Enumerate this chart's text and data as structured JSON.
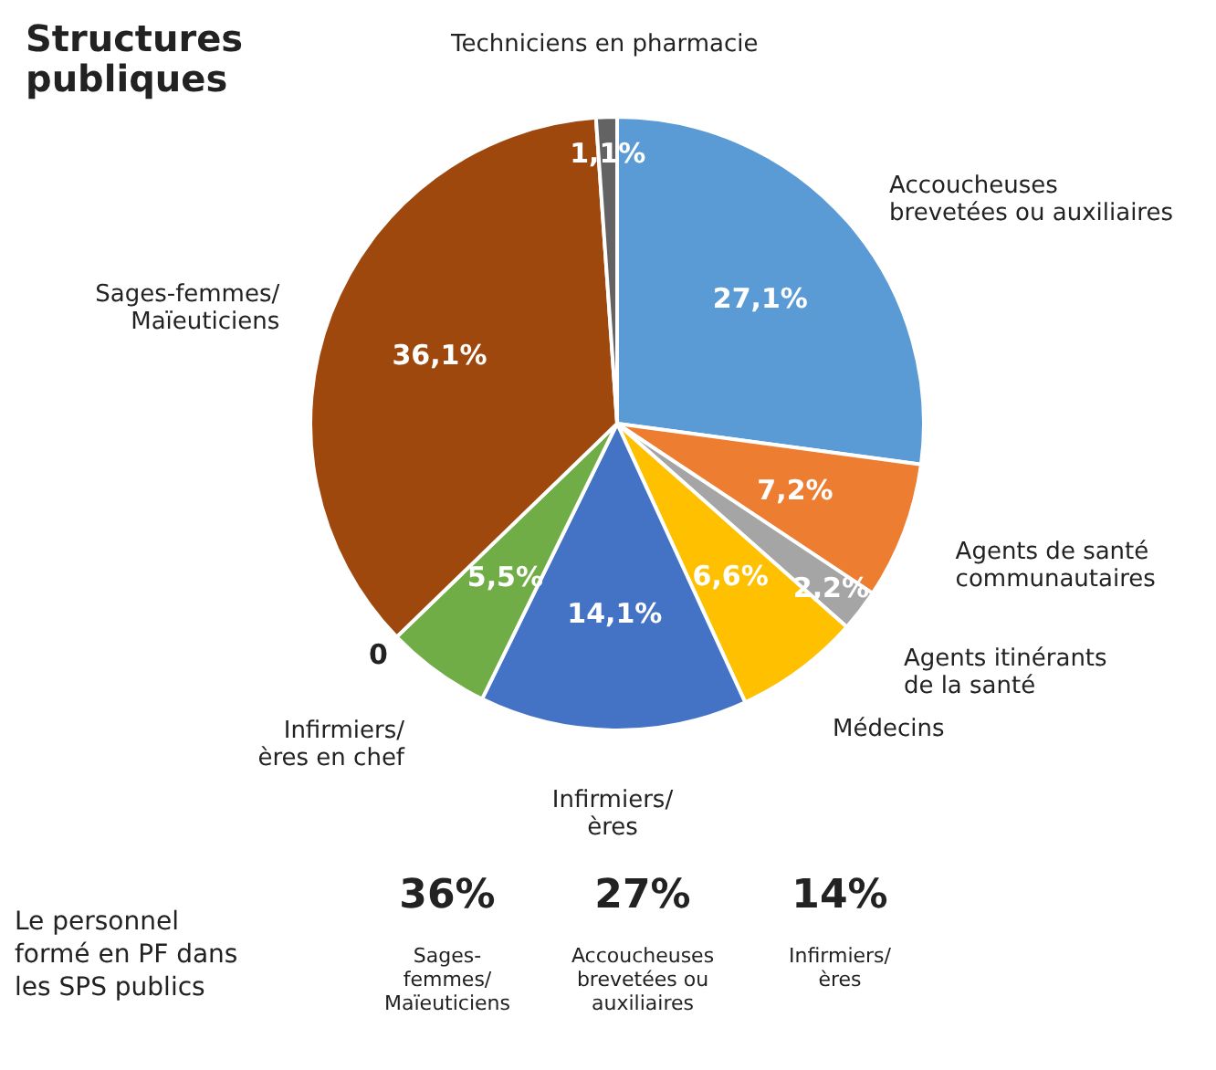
{
  "chart_data": {
    "type": "pie",
    "title": "Structures\npubliques",
    "categories": [
      "Accoucheuses\nbrevetées ou auxiliaires",
      "Agents de santé\ncommunautaires",
      "Agents itinérants\nde la santé",
      "Médecins",
      "Infirmiers/\nères",
      "Infirmiers/\nères en chef",
      null,
      "Sages-femmes/\nMaïeuticiens",
      "Techniciens en pharmacie"
    ],
    "values": [
      27.1,
      7.2,
      2.2,
      6.6,
      14.1,
      5.5,
      0,
      36.1,
      1.1
    ],
    "colors": [
      "#5b9bd5",
      "#ed7d31",
      "#a5a5a5",
      "#ffc000",
      "#4472c4",
      "#70ad47",
      "#255e91",
      "#9e480e",
      "#636363"
    ],
    "value_labels": [
      "27,1%",
      "7,2%",
      "2,2%",
      "6,6%",
      "14,1%",
      "5,5%",
      "0",
      "36,1%",
      "1,1%"
    ],
    "annotations": [
      "Le personnel\nformé en PF dans\nles SPS publics",
      "36%\nSages-\nfemmes/\nMaïeuticiens",
      "27%\nAccoucheuses\nbrevetées ou\nauxiliaires",
      "14%\nInfirmiers/\nères"
    ]
  }
}
